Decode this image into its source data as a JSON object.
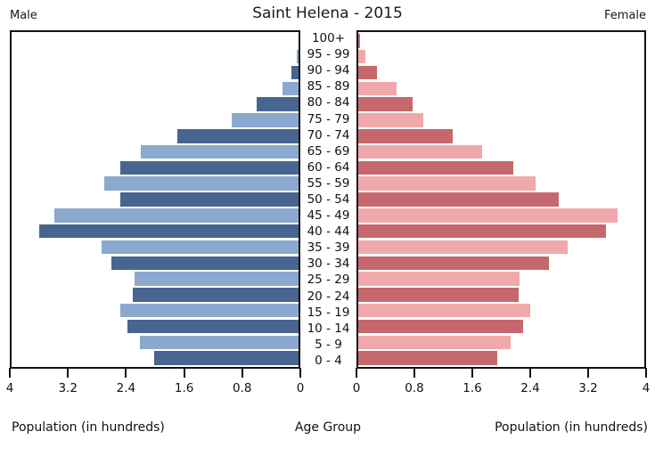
{
  "header": {
    "title": "Saint Helena - 2015",
    "male_label": "Male",
    "female_label": "Female"
  },
  "footer": {
    "left_caption": "Population (in hundreds)",
    "center_caption": "Age Group",
    "right_caption": "Population (in hundreds)"
  },
  "chart_data": {
    "type": "bar",
    "subtype": "population-pyramid",
    "title": "Saint Helena - 2015",
    "unit": "hundreds",
    "age_groups_top_to_bottom": [
      "100+",
      "95 - 99",
      "90 - 94",
      "85 - 89",
      "80 - 84",
      "75 - 79",
      "70 - 74",
      "65 - 69",
      "60 - 64",
      "55 - 59",
      "50 - 54",
      "45 - 49",
      "40 - 44",
      "35 - 39",
      "30 - 34",
      "25 - 29",
      "20 - 24",
      "15 - 19",
      "10 - 14",
      "5 - 9",
      "0 - 4"
    ],
    "series": [
      {
        "name": "Male",
        "side": "left",
        "values_top_to_bottom": [
          0.0,
          0.02,
          0.1,
          0.23,
          0.59,
          0.93,
          1.69,
          2.2,
          2.49,
          2.71,
          2.49,
          3.41,
          3.61,
          2.75,
          2.61,
          2.29,
          2.31,
          2.49,
          2.39,
          2.21,
          2.01
        ]
      },
      {
        "name": "Female",
        "side": "right",
        "values_top_to_bottom": [
          0.02,
          0.1,
          0.26,
          0.53,
          0.76,
          0.91,
          1.32,
          1.73,
          2.17,
          2.48,
          2.8,
          3.62,
          3.47,
          2.93,
          2.67,
          2.25,
          2.24,
          2.41,
          2.3,
          2.13,
          1.95
        ]
      }
    ],
    "x_axis": {
      "max": 4,
      "ticks_left_to_right_male": [
        "4",
        "3.2",
        "2.4",
        "1.6",
        "0.8",
        "0"
      ],
      "ticks_left_to_right_female": [
        "0",
        "0.8",
        "1.6",
        "2.4",
        "3.2",
        "4"
      ],
      "label": "Population (in hundreds)"
    },
    "y_axis_label": "Age Group",
    "grid": false,
    "legend": "none",
    "colors": {
      "male_dark": "#47658F",
      "male_light": "#8BA9CE",
      "female_dark": "#C5686D",
      "female_light": "#F0A8AB"
    }
  }
}
